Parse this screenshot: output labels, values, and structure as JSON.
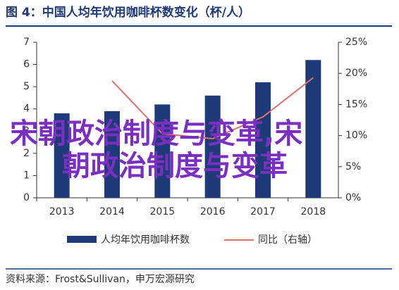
{
  "chart_data": {
    "type": "bar_line",
    "title": "图 4：中国人均年饮用咖啡杯数变化（杯/人）",
    "categories": [
      "2013",
      "2014",
      "2015",
      "2016",
      "2017",
      "2018"
    ],
    "series": [
      {
        "name": "人均年饮用咖啡杯数",
        "type": "bar",
        "color": "#1f3a78",
        "values": [
          3.8,
          3.9,
          4.2,
          4.6,
          5.2,
          6.2
        ]
      },
      {
        "name": "同比（右轴）",
        "type": "line",
        "axis": "y2",
        "color": "#e0706a",
        "values": [
          null,
          18.8,
          10.3,
          9.5,
          13.0,
          19.3
        ]
      }
    ],
    "ylim": [
      0,
      7
    ],
    "yticks": [
      0,
      1,
      2,
      3,
      4,
      5,
      6,
      7
    ],
    "y2lim": [
      0,
      25
    ],
    "y2ticks": [
      {
        "value": 0,
        "label": "0%"
      },
      {
        "value": 5,
        "label": "5%"
      },
      {
        "value": 10,
        "label": "10%"
      },
      {
        "value": 15,
        "label": "15%"
      },
      {
        "value": 20,
        "label": "20%"
      },
      {
        "value": 25,
        "label": "25%"
      }
    ],
    "source": "资料来源：Frost&Sullivan，申万宏源研究"
  },
  "watermark": [
    "宋朝政治制度与变革,宋",
    "朝政治制度与变革"
  ]
}
